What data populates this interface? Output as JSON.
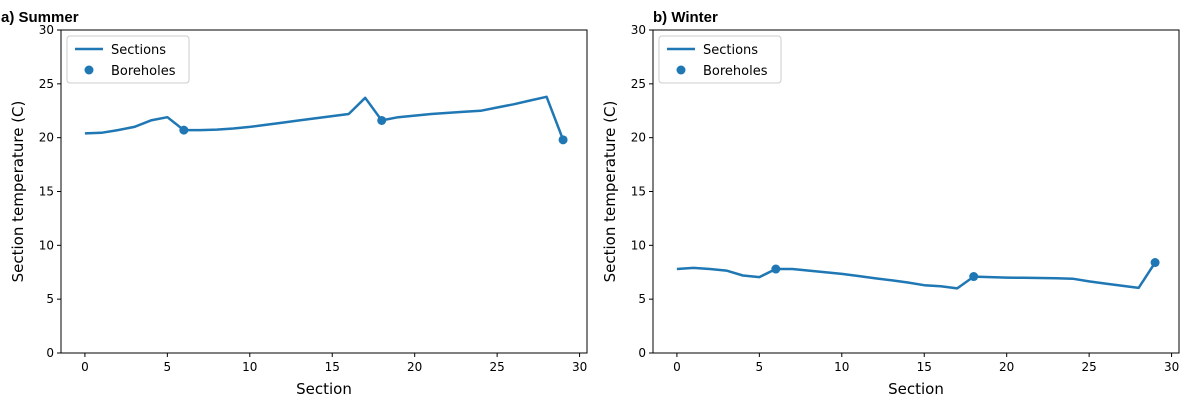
{
  "chart_data": [
    {
      "type": "line",
      "title": "a) Summer",
      "xlabel": "Section",
      "ylabel": "Section temperature (C)",
      "xlim": [
        -1.45,
        30.45
      ],
      "ylim": [
        0,
        30
      ],
      "xticks": [
        0,
        5,
        10,
        15,
        20,
        25,
        30
      ],
      "yticks": [
        0,
        5,
        10,
        15,
        20,
        25,
        30
      ],
      "legend": {
        "placement": "top-left",
        "entries": [
          "Sections",
          "Boreholes"
        ]
      },
      "color": "#1f77b4",
      "series": [
        {
          "name": "Sections",
          "kind": "line",
          "x": [
            0,
            1,
            2,
            3,
            4,
            5,
            6,
            7,
            8,
            9,
            10,
            11,
            12,
            13,
            14,
            15,
            16,
            17,
            18,
            19,
            20,
            21,
            22,
            23,
            24,
            25,
            26,
            27,
            28,
            29
          ],
          "y": [
            20.4,
            20.45,
            20.7,
            21.0,
            21.6,
            21.9,
            20.7,
            20.7,
            20.75,
            20.85,
            21.0,
            21.2,
            21.4,
            21.6,
            21.8,
            22.0,
            22.2,
            23.7,
            21.6,
            21.9,
            22.05,
            22.2,
            22.3,
            22.4,
            22.5,
            22.8,
            23.1,
            23.45,
            23.8,
            19.8
          ]
        },
        {
          "name": "Boreholes",
          "kind": "scatter",
          "x": [
            6,
            18,
            29
          ],
          "y": [
            20.7,
            21.6,
            19.8
          ]
        }
      ]
    },
    {
      "type": "line",
      "title": "b) Winter",
      "xlabel": "Section",
      "ylabel": "Section temperature (C)",
      "xlim": [
        -1.45,
        30.45
      ],
      "ylim": [
        0,
        30
      ],
      "xticks": [
        0,
        5,
        10,
        15,
        20,
        25,
        30
      ],
      "yticks": [
        0,
        5,
        10,
        15,
        20,
        25,
        30
      ],
      "legend": {
        "placement": "top-left",
        "entries": [
          "Sections",
          "Boreholes"
        ]
      },
      "color": "#1f77b4",
      "series": [
        {
          "name": "Sections",
          "kind": "line",
          "x": [
            0,
            1,
            2,
            3,
            4,
            5,
            6,
            7,
            8,
            9,
            10,
            11,
            12,
            13,
            14,
            15,
            16,
            17,
            18,
            19,
            20,
            21,
            22,
            23,
            24,
            25,
            26,
            27,
            28,
            29
          ],
          "y": [
            7.8,
            7.9,
            7.8,
            7.65,
            7.2,
            7.05,
            7.8,
            7.8,
            7.65,
            7.5,
            7.35,
            7.15,
            6.95,
            6.75,
            6.55,
            6.3,
            6.2,
            6.0,
            7.1,
            7.05,
            7.0,
            6.98,
            6.97,
            6.95,
            6.9,
            6.65,
            6.45,
            6.25,
            6.05,
            8.4
          ]
        },
        {
          "name": "Boreholes",
          "kind": "scatter",
          "x": [
            6,
            18,
            29
          ],
          "y": [
            7.8,
            7.1,
            8.4
          ]
        }
      ]
    }
  ]
}
